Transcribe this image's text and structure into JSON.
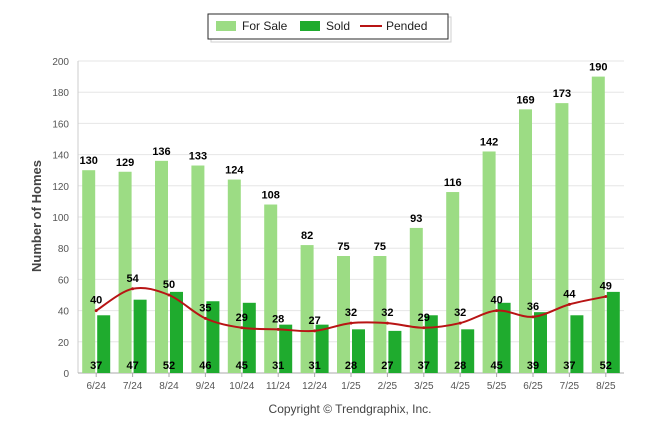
{
  "chart_data": {
    "type": "bar",
    "categories": [
      "6/24",
      "7/24",
      "8/24",
      "9/24",
      "10/24",
      "11/24",
      "12/24",
      "1/25",
      "2/25",
      "3/25",
      "4/25",
      "5/25",
      "6/25",
      "7/25",
      "8/25"
    ],
    "series": [
      {
        "name": "For Sale",
        "type": "bar",
        "color": "#9cdc84",
        "values": [
          130,
          129,
          136,
          133,
          124,
          108,
          82,
          75,
          75,
          93,
          116,
          142,
          169,
          173,
          190
        ]
      },
      {
        "name": "Sold",
        "type": "bar",
        "color": "#1fab2e",
        "values": [
          37,
          47,
          52,
          46,
          45,
          31,
          31,
          28,
          27,
          37,
          28,
          45,
          39,
          37,
          52
        ]
      },
      {
        "name": "Pended",
        "type": "line",
        "color": "#b81414",
        "values": [
          40,
          54,
          50,
          35,
          29,
          28,
          27,
          32,
          32,
          29,
          32,
          40,
          36,
          44,
          49
        ]
      }
    ],
    "ylabel": "Number of Homes",
    "yticks": [
      0,
      20,
      40,
      60,
      80,
      100,
      120,
      140,
      160,
      180,
      200
    ],
    "ylim": [
      0,
      200
    ],
    "grid": true,
    "legend_position": "top-center",
    "footer": "Copyright © Trendgraphix, Inc."
  }
}
